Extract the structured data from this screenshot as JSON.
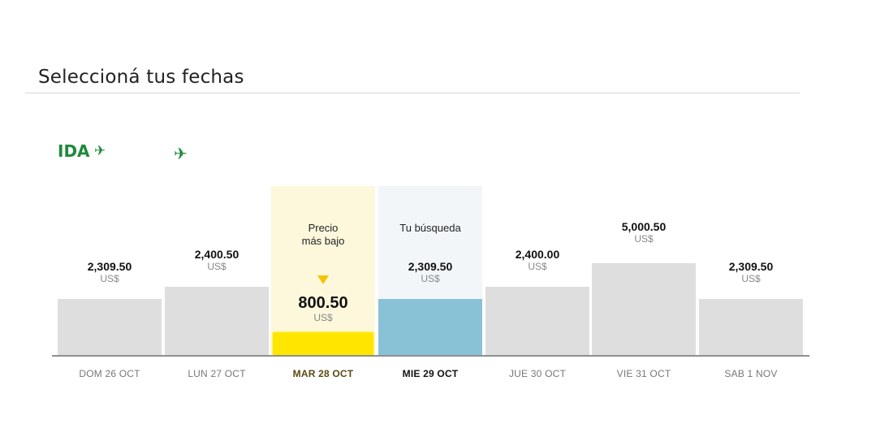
{
  "page": {
    "title": "Seleccioná tus fechas"
  },
  "flight": {
    "direction_label": "IDA",
    "icon_small": "plane-takeoff-icon",
    "icon_big": "plane-icon",
    "accent_color": "#1d8a3a"
  },
  "days": [
    {
      "date": "DOM 26 OCT",
      "price": "2,309.50",
      "currency": "US$",
      "state": "normal"
    },
    {
      "date": "LUN 27 OCT",
      "price": "2,400.50",
      "currency": "US$",
      "state": "normal"
    },
    {
      "date": "MAR 28 OCT",
      "price": "800.50",
      "currency": "US$",
      "state": "lowest",
      "caption_line1": "Precio",
      "caption_line2": "más bajo"
    },
    {
      "date": "MIE 29 OCT",
      "price": "2,309.50",
      "currency": "US$",
      "state": "search",
      "caption_line1": "Tu búsqueda"
    },
    {
      "date": "JUE 30 OCT",
      "price": "2,400.00",
      "currency": "US$",
      "state": "normal"
    },
    {
      "date": "VIE 31 OCT",
      "price": "5,000.50",
      "currency": "US$",
      "state": "normal"
    },
    {
      "date": "SAB 1 NOV",
      "price": "2,309.50",
      "currency": "US$",
      "state": "normal"
    }
  ],
  "colors": {
    "lowest": "#ffe600",
    "search": "#89c2d6",
    "normal": "#dedede"
  }
}
